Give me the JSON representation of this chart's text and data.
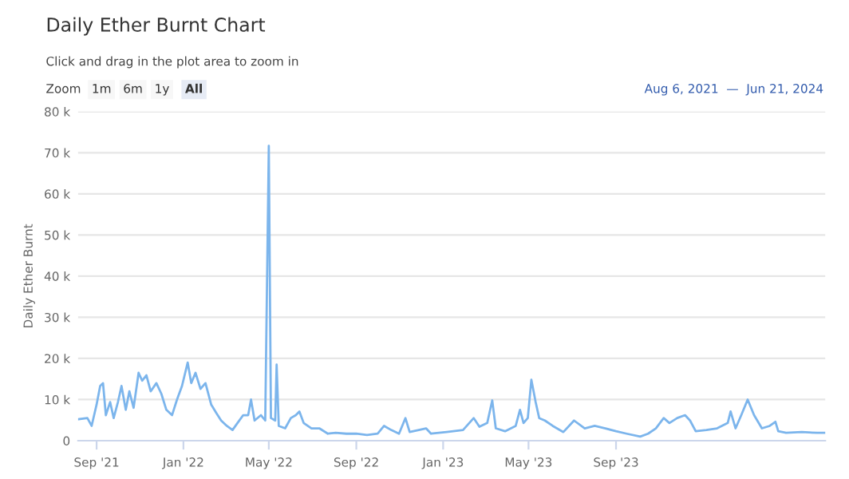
{
  "chart_data": {
    "type": "line",
    "title": "Daily Ether Burnt Chart",
    "subtitle": "Click and drag in the plot area to zoom in",
    "ylabel": "Daily Ether Burnt",
    "annotations": [
      "Zoom",
      "1m",
      "6m",
      "1y",
      "All",
      "Aug 6, 2021  —  Jun 21, 2024"
    ],
    "x": [
      "2021-08-06",
      "2021-08-19",
      "2021-08-25",
      "2021-09-01",
      "2021-09-06",
      "2021-09-10",
      "2021-09-14",
      "2021-09-20",
      "2021-09-25",
      "2021-10-01",
      "2021-10-06",
      "2021-10-12",
      "2021-10-17",
      "2021-10-23",
      "2021-10-30",
      "2021-11-04",
      "2021-11-10",
      "2021-11-16",
      "2021-11-24",
      "2021-12-01",
      "2021-12-08",
      "2021-12-16",
      "2021-12-23",
      "2021-12-30",
      "2022-01-07",
      "2022-01-12",
      "2022-01-18",
      "2022-01-25",
      "2022-02-01",
      "2022-02-09",
      "2022-02-16",
      "2022-02-23",
      "2022-03-03",
      "2022-03-11",
      "2022-03-18",
      "2022-03-26",
      "2022-04-02",
      "2022-04-06",
      "2022-04-11",
      "2022-04-20",
      "2022-04-26",
      "2022-05-01",
      "2022-05-04",
      "2022-05-10",
      "2022-05-12",
      "2022-05-15",
      "2022-05-24",
      "2022-06-01",
      "2022-06-08",
      "2022-06-13",
      "2022-06-19",
      "2022-06-30",
      "2022-07-11",
      "2022-07-23",
      "2022-08-03",
      "2022-08-18",
      "2022-09-01",
      "2022-09-16",
      "2022-10-01",
      "2022-10-10",
      "2022-10-20",
      "2022-10-31",
      "2022-11-09",
      "2022-11-15",
      "2022-12-08",
      "2022-12-15",
      "2023-01-06",
      "2023-01-29",
      "2023-02-13",
      "2023-02-21",
      "2023-03-04",
      "2023-03-11",
      "2023-03-16",
      "2023-03-29",
      "2023-04-13",
      "2023-04-19",
      "2023-04-24",
      "2023-04-30",
      "2023-05-05",
      "2023-05-11",
      "2023-05-16",
      "2023-05-24",
      "2023-06-04",
      "2023-06-19",
      "2023-07-04",
      "2023-07-19",
      "2023-08-02",
      "2023-08-17",
      "2023-09-01",
      "2023-09-16",
      "2023-10-05",
      "2023-10-16",
      "2023-10-27",
      "2023-11-07",
      "2023-11-15",
      "2023-11-26",
      "2023-12-07",
      "2023-12-14",
      "2023-12-22",
      "2024-01-06",
      "2024-01-21",
      "2024-02-05",
      "2024-02-09",
      "2024-02-16",
      "2024-02-24",
      "2024-03-04",
      "2024-03-13",
      "2024-03-24",
      "2024-04-04",
      "2024-04-12",
      "2024-04-16",
      "2024-04-27",
      "2024-05-19",
      "2024-06-10",
      "2024-06-21"
    ],
    "series": [
      {
        "color": "#7cb5ec",
        "values": [
          5200,
          5500,
          3600,
          8800,
          13300,
          14000,
          6200,
          9400,
          5500,
          9400,
          13300,
          7500,
          12000,
          8000,
          16500,
          14600,
          15900,
          12000,
          14000,
          11400,
          7500,
          6200,
          10000,
          13300,
          19000,
          14000,
          16500,
          12600,
          14000,
          8800,
          6800,
          4900,
          3600,
          2600,
          4300,
          6200,
          6200,
          10000,
          4900,
          6200,
          4900,
          71700,
          5500,
          4900,
          18500,
          3600,
          3000,
          5500,
          6200,
          7100,
          4300,
          3000,
          3000,
          1700,
          1900,
          1700,
          1700,
          1400,
          1700,
          3600,
          2600,
          1700,
          5500,
          2100,
          3000,
          1700,
          2100,
          2600,
          5500,
          3400,
          4300,
          9800,
          3000,
          2300,
          3600,
          7500,
          4300,
          5500,
          14800,
          9400,
          5500,
          4900,
          3600,
          2100,
          4900,
          3000,
          3600,
          3000,
          2300,
          1700,
          1000,
          1700,
          3000,
          5500,
          4300,
          5500,
          6200,
          4900,
          2300,
          2600,
          3000,
          4300,
          7100,
          3000,
          6200,
          10000,
          6200,
          3000,
          3600,
          4600,
          2300,
          1900,
          2100,
          1900,
          1900
        ]
      }
    ],
    "xlim": [
      "2021-08-06",
      "2024-06-21"
    ],
    "xticks": [
      {
        "value": "2021-09-01",
        "label": "Sep '21"
      },
      {
        "value": "2022-01-01",
        "label": "Jan '22"
      },
      {
        "value": "2022-05-01",
        "label": "May '22"
      },
      {
        "value": "2022-09-01",
        "label": "Sep '22"
      },
      {
        "value": "2023-01-01",
        "label": "Jan '23"
      },
      {
        "value": "2023-05-01",
        "label": "May '23"
      },
      {
        "value": "2023-09-01",
        "label": "Sep '23"
      }
    ],
    "ylim": [
      0,
      80000
    ],
    "yticks": [
      0,
      {
        "value": 10000,
        "label": "10 k"
      },
      {
        "value": 20000,
        "label": "20 k"
      },
      {
        "value": 30000,
        "label": "30 k"
      },
      {
        "value": 40000,
        "label": "40 k"
      },
      {
        "value": 50000,
        "label": "50 k"
      },
      {
        "value": 60000,
        "label": "60 k"
      },
      {
        "value": 70000,
        "label": "70 k"
      },
      {
        "value": 80000,
        "label": "80 k"
      }
    ],
    "grid": "y",
    "legend": false
  }
}
